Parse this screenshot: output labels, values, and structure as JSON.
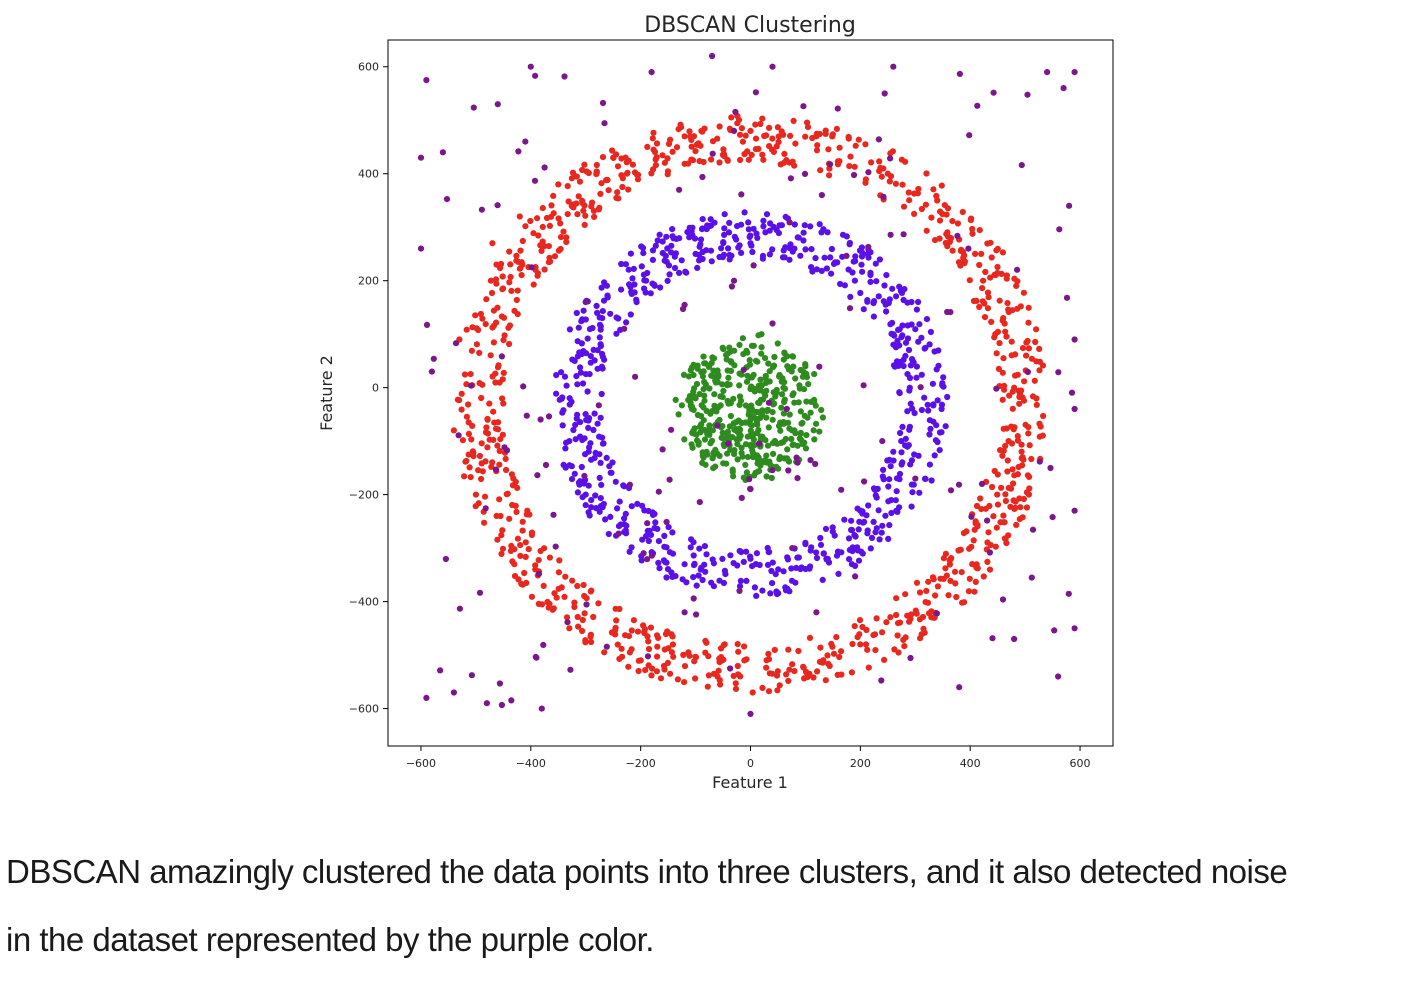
{
  "chart_data": {
    "type": "scatter",
    "title": "DBSCAN Clustering",
    "xlabel": "Feature 1",
    "ylabel": "Feature 2",
    "xlim": [
      -660,
      660
    ],
    "ylim": [
      -670,
      650
    ],
    "x_ticks": [
      -600,
      -400,
      -200,
      0,
      200,
      400,
      600
    ],
    "y_ticks": [
      600,
      400,
      200,
      0,
      -200,
      -400,
      -600
    ],
    "grid": false,
    "legend": "none",
    "series": [
      {
        "color": "#e8281e",
        "shape": "ring",
        "center": [
          0,
          -30
        ],
        "radius_range": [
          450,
          540
        ],
        "approx_points": 950,
        "sample_points": [
          [
            -470,
            270
          ],
          [
            -530,
            90
          ],
          [
            -540,
            -80
          ],
          [
            -500,
            -200
          ],
          [
            -430,
            -330
          ],
          [
            -330,
            -450
          ],
          [
            -200,
            -510
          ],
          [
            -60,
            -540
          ],
          [
            80,
            -530
          ],
          [
            200,
            -480
          ],
          [
            320,
            -380
          ],
          [
            410,
            -250
          ],
          [
            470,
            -100
          ],
          [
            480,
            0
          ],
          [
            460,
            130
          ],
          [
            420,
            250
          ],
          [
            340,
            350
          ],
          [
            250,
            400
          ],
          [
            120,
            470
          ],
          [
            0,
            480
          ],
          [
            -120,
            470
          ],
          [
            -250,
            430
          ],
          [
            -350,
            380
          ],
          [
            -420,
            320
          ]
        ]
      },
      {
        "color": "#5b10e8",
        "shape": "ring",
        "center": [
          0,
          -30
        ],
        "radius_range": [
          270,
          360
        ],
        "approx_points": 720,
        "sample_points": [
          [
            -320,
            50
          ],
          [
            -330,
            -100
          ],
          [
            -300,
            -200
          ],
          [
            -230,
            -270
          ],
          [
            -120,
            -330
          ],
          [
            0,
            -320
          ],
          [
            100,
            -290
          ],
          [
            200,
            -230
          ],
          [
            260,
            -120
          ],
          [
            290,
            0
          ],
          [
            260,
            100
          ],
          [
            190,
            200
          ],
          [
            80,
            260
          ],
          [
            0,
            270
          ],
          [
            -100,
            250
          ],
          [
            -190,
            200
          ],
          [
            -270,
            130
          ]
        ]
      },
      {
        "color": "#2e8c1e",
        "shape": "disk",
        "center": [
          0,
          -40
        ],
        "radius_range": [
          0,
          140
        ],
        "approx_points": 420,
        "sample_points": [
          [
            -60,
            20
          ],
          [
            -40,
            -30
          ],
          [
            0,
            -60
          ],
          [
            60,
            0
          ],
          [
            80,
            -80
          ],
          [
            -80,
            -120
          ],
          [
            20,
            100
          ],
          [
            -20,
            80
          ],
          [
            30,
            -140
          ],
          [
            -100,
            -20
          ],
          [
            100,
            40
          ]
        ]
      },
      {
        "color": "#7b168c",
        "shape": "scattered",
        "center": [
          0,
          0
        ],
        "radius_range": [
          0,
          600
        ],
        "approx_points": 190,
        "sample_points": [
          [
            -590,
            575
          ],
          [
            -460,
            530
          ],
          [
            -410,
            460
          ],
          [
            -560,
            440
          ],
          [
            -600,
            430
          ],
          [
            -600,
            260
          ],
          [
            -580,
            30
          ],
          [
            -590,
            -580
          ],
          [
            -540,
            -570
          ],
          [
            -480,
            -590
          ],
          [
            -380,
            -600
          ],
          [
            590,
            590
          ],
          [
            540,
            590
          ],
          [
            570,
            560
          ],
          [
            580,
            340
          ],
          [
            590,
            90
          ],
          [
            590,
            -40
          ],
          [
            590,
            -230
          ],
          [
            590,
            -450
          ],
          [
            560,
            -540
          ],
          [
            480,
            -470
          ],
          [
            380,
            -560
          ],
          [
            0,
            -610
          ],
          [
            -70,
            620
          ],
          [
            40,
            600
          ],
          [
            260,
            600
          ],
          [
            -400,
            600
          ],
          [
            -180,
            590
          ],
          [
            -30,
            200
          ],
          [
            40,
            120
          ],
          [
            -130,
            370
          ],
          [
            130,
            360
          ],
          [
            -230,
            110
          ],
          [
            240,
            -100
          ],
          [
            -120,
            -420
          ],
          [
            120,
            -420
          ],
          [
            -20,
            -380
          ],
          [
            -30,
            480
          ],
          [
            -300,
            160
          ],
          [
            300,
            -170
          ]
        ]
      }
    ]
  },
  "caption": {
    "line1": "DBSCAN amazingly clustered the data points into three clusters, and it also detected noise",
    "line2": "in the dataset represented by the purple color."
  }
}
